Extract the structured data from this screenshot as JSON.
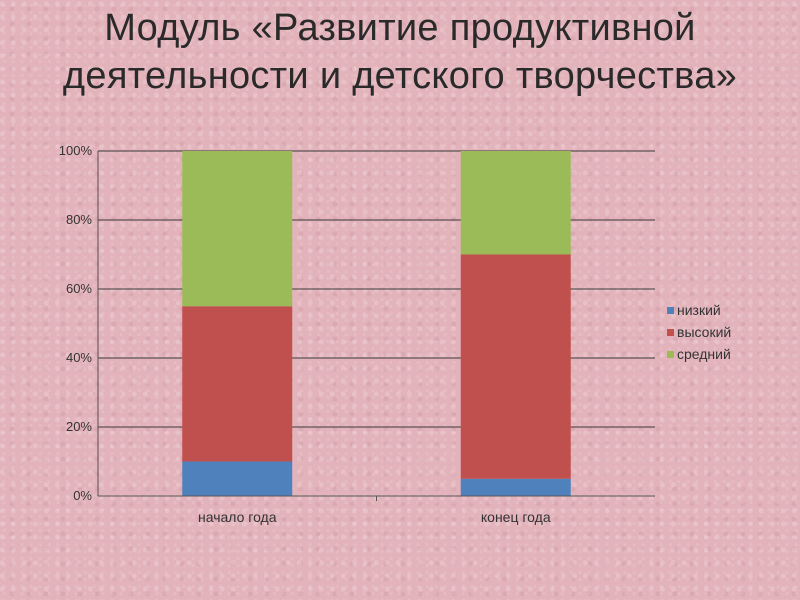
{
  "page": {
    "title": "Модуль «Развитие продуктивной деятельности и детского творчества»"
  },
  "chart_data": {
    "type": "bar",
    "stacked": true,
    "normalized_percent": true,
    "categories": [
      "начало года",
      "конец года"
    ],
    "series": [
      {
        "name": "низкий",
        "values": [
          10,
          5
        ],
        "color": "#4f81bd"
      },
      {
        "name": "высокий",
        "values": [
          45,
          65
        ],
        "color": "#c0504d"
      },
      {
        "name": "средний",
        "values": [
          45,
          30
        ],
        "color": "#9bbb59"
      }
    ],
    "y_ticks": [
      "0%",
      "20%",
      "40%",
      "60%",
      "80%",
      "100%"
    ],
    "ylim": [
      0,
      100
    ],
    "grid": true,
    "legend_position": "right"
  }
}
